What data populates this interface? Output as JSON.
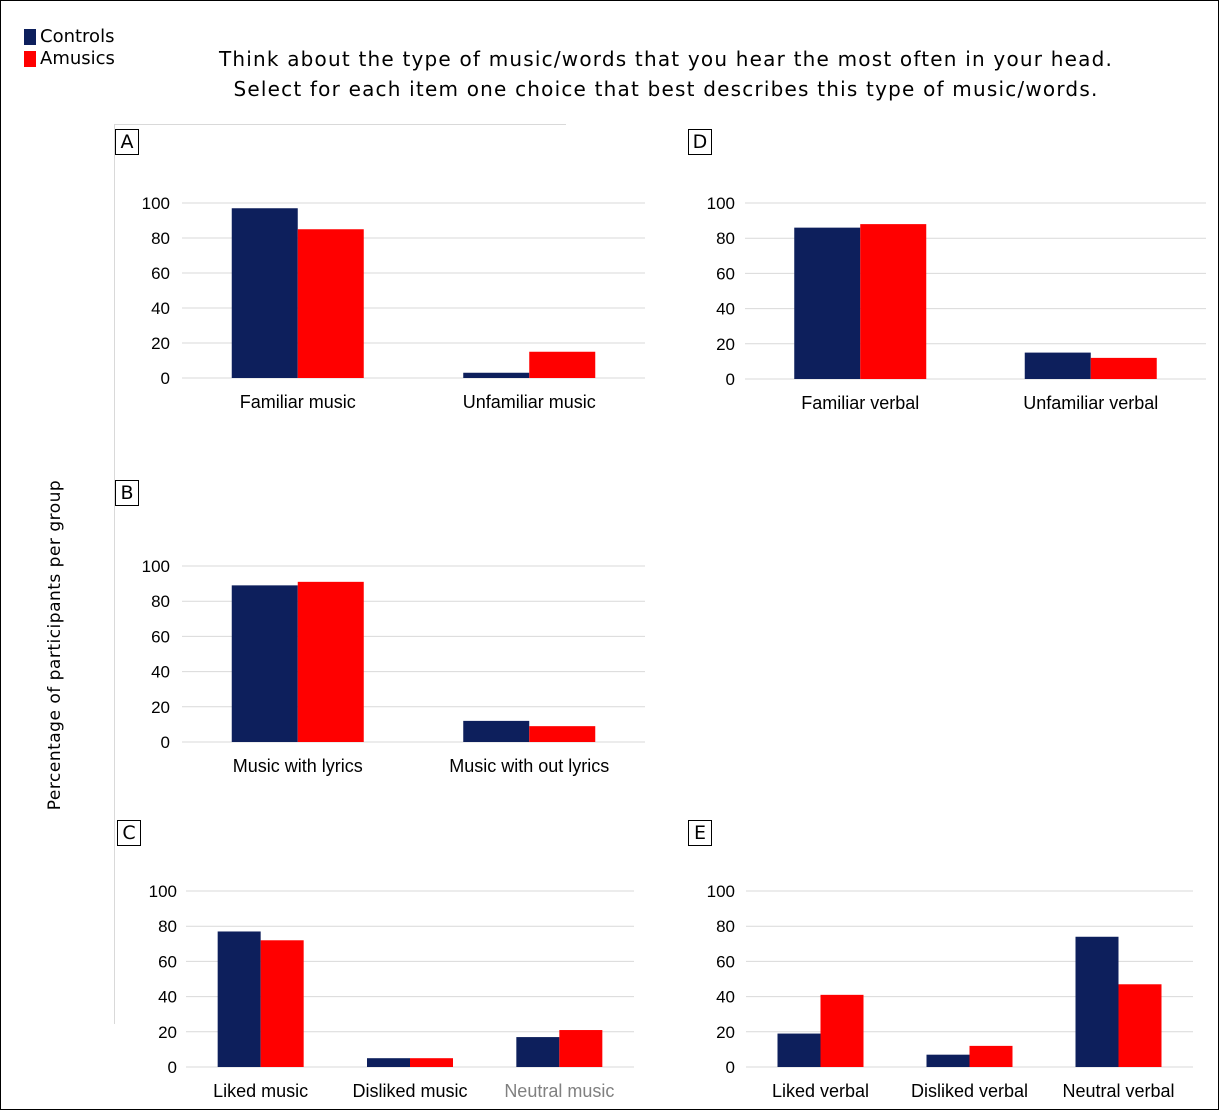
{
  "legend": {
    "controls_label": "Controls",
    "amusics_label": "Amusics"
  },
  "heading": {
    "line1": "Think about the type of music/words that you hear the most often in your head.",
    "line2": "Select for each item one choice that best describes this type of music/words."
  },
  "ylabel": "Percentage of participants per group",
  "colors": {
    "controls": "#0d1f5c",
    "amusics": "#ff0000",
    "grid": "#d9d9d9",
    "muted_label": "#808080"
  },
  "chart_data": [
    {
      "panel": "A",
      "type": "bar",
      "categories": [
        "Familiar music",
        "Unfamiliar music"
      ],
      "series": [
        {
          "name": "Controls",
          "values": [
            97,
            3
          ]
        },
        {
          "name": "Amusics",
          "values": [
            85,
            15
          ]
        }
      ],
      "yticks": [
        "0",
        "20",
        "40",
        "60",
        "80",
        "100"
      ],
      "ylim": [
        0,
        100
      ],
      "grid": true
    },
    {
      "panel": "B",
      "type": "bar",
      "categories": [
        "Music with lyrics",
        "Music with out lyrics"
      ],
      "series": [
        {
          "name": "Controls",
          "values": [
            89,
            12
          ]
        },
        {
          "name": "Amusics",
          "values": [
            91,
            9
          ]
        }
      ],
      "yticks": [
        "0",
        "20",
        "40",
        "60",
        "80",
        "100"
      ],
      "ylim": [
        0,
        100
      ],
      "grid": true
    },
    {
      "panel": "C",
      "type": "bar",
      "categories": [
        "Liked music",
        "Disliked music",
        "Neutral music"
      ],
      "series": [
        {
          "name": "Controls",
          "values": [
            77,
            5,
            17
          ]
        },
        {
          "name": "Amusics",
          "values": [
            72,
            5,
            21
          ]
        }
      ],
      "yticks": [
        "0",
        "20",
        "40",
        "60",
        "80",
        "100"
      ],
      "ylim": [
        0,
        100
      ],
      "grid": true,
      "muted_categories": [
        "Neutral music"
      ]
    },
    {
      "panel": "D",
      "type": "bar",
      "categories": [
        "Familiar verbal",
        "Unfamiliar verbal"
      ],
      "series": [
        {
          "name": "Controls",
          "values": [
            86,
            15
          ]
        },
        {
          "name": "Amusics",
          "values": [
            88,
            12
          ]
        }
      ],
      "yticks": [
        "0",
        "20",
        "40",
        "60",
        "80",
        "100"
      ],
      "ylim": [
        0,
        100
      ],
      "grid": true
    },
    {
      "panel": "E",
      "type": "bar",
      "categories": [
        "Liked verbal",
        "Disliked verbal",
        "Neutral verbal"
      ],
      "series": [
        {
          "name": "Controls",
          "values": [
            19,
            7,
            74
          ]
        },
        {
          "name": "Amusics",
          "values": [
            41,
            12,
            47
          ]
        }
      ],
      "yticks": [
        "0",
        "20",
        "40",
        "60",
        "80",
        "100"
      ],
      "ylim": [
        0,
        100
      ],
      "grid": true
    }
  ]
}
